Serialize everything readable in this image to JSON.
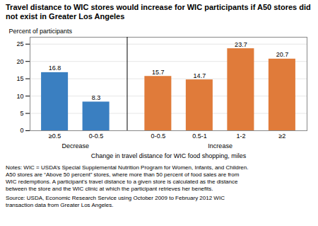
{
  "chart_data": {
    "type": "bar",
    "title": "Travel distance to WIC stores would increase for WIC participants if A50 stores did not exist in Greater Los Angeles",
    "xlabel": "Change in travel distance for WIC food shopping, miles",
    "ylabel": "Percent of participants",
    "categories": [
      "≥0.5",
      "0-0.5",
      "0-0.5",
      "0.5-1",
      "1-2",
      "≥2"
    ],
    "values": [
      16.8,
      8.3,
      15.7,
      14.7,
      23.7,
      20.7
    ],
    "colors": [
      "#3a7fc1",
      "#3a7fc1",
      "#e07b3a",
      "#e07b3a",
      "#e07b3a",
      "#e07b3a"
    ],
    "annotations": [
      "Decrease",
      "Increase"
    ],
    "notes": "Notes: WIC = USDA’s Special Supplemental Nutrition Program for Women, Infants, and Children.\nA50 stores are “Above 50 percent” stores, where more than 50 percent of food sales are from\nWIC redemptions. A participant’s travel distance to a given store is calculated as the distance\nbetween the store and the WIC clinic at which the participant retrieves her benefits.",
    "source": "Source: USDA, Economic Research Service using October 2009 to February 2012 WIC\ntransaction data from Greater Los Angeles.",
    "ylim": [
      0,
      27
    ],
    "yticks": [
      0,
      5,
      10,
      15,
      20,
      25
    ],
    "grid": true,
    "data_labels": true
  }
}
